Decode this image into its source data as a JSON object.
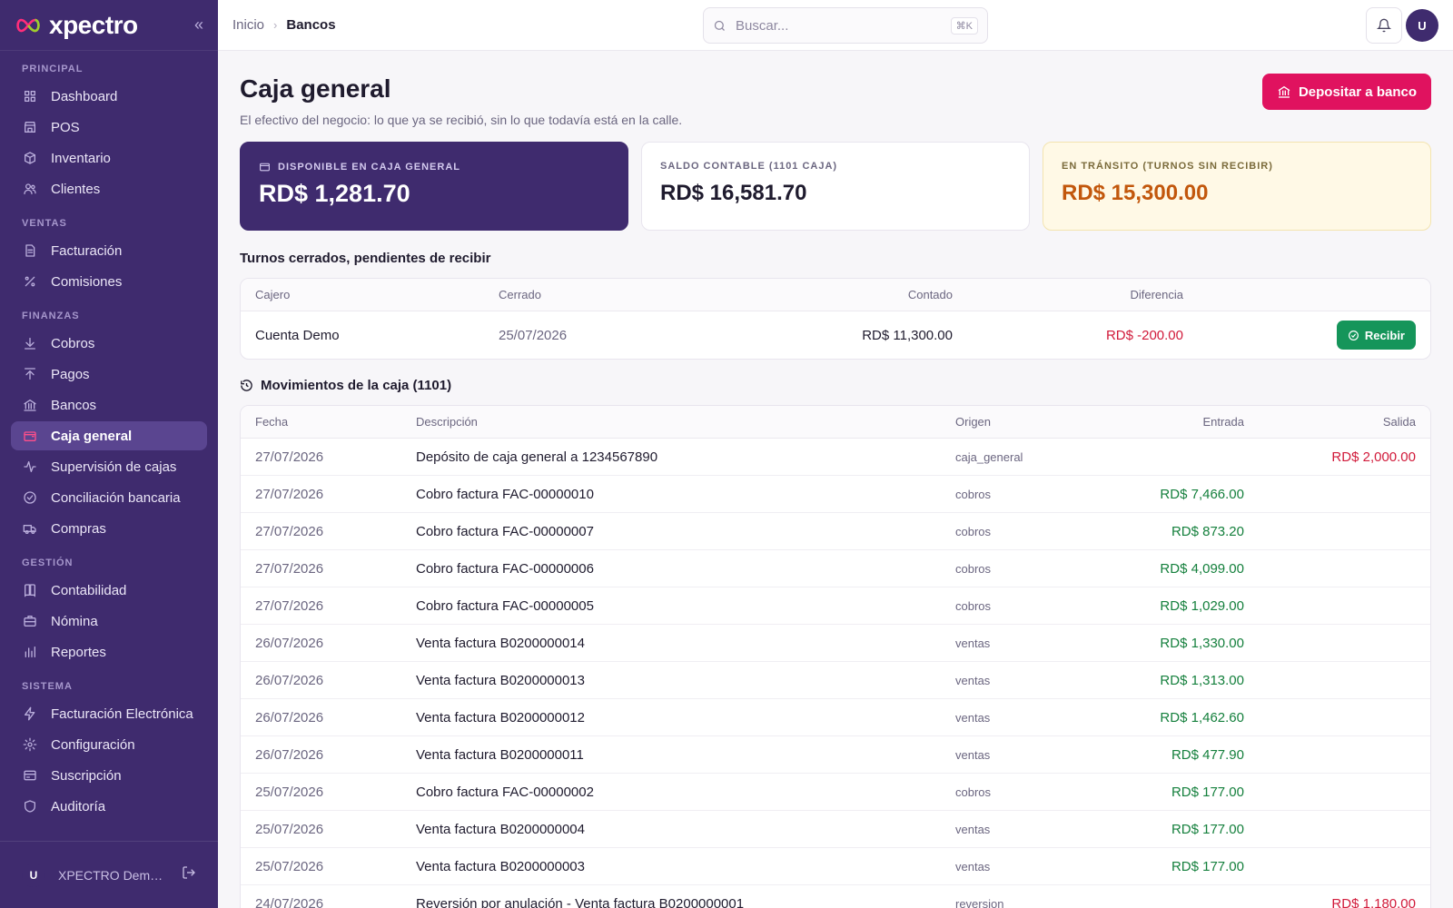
{
  "sidebar": {
    "brand": "xpectro",
    "sections": [
      {
        "title": "PRINCIPAL",
        "items": [
          {
            "name": "dashboard",
            "label": "Dashboard",
            "icon": "grid"
          },
          {
            "name": "pos",
            "label": "POS",
            "icon": "store"
          },
          {
            "name": "inventario",
            "label": "Inventario",
            "icon": "box"
          },
          {
            "name": "clientes",
            "label": "Clientes",
            "icon": "users"
          }
        ]
      },
      {
        "title": "VENTAS",
        "items": [
          {
            "name": "facturacion",
            "label": "Facturación",
            "icon": "file"
          },
          {
            "name": "comisiones",
            "label": "Comisiones",
            "icon": "percent"
          }
        ]
      },
      {
        "title": "FINANZAS",
        "items": [
          {
            "name": "cobros",
            "label": "Cobros",
            "icon": "arrow-down"
          },
          {
            "name": "pagos",
            "label": "Pagos",
            "icon": "arrow-up"
          },
          {
            "name": "bancos",
            "label": "Bancos",
            "icon": "bank"
          },
          {
            "name": "caja-general",
            "label": "Caja general",
            "icon": "wallet",
            "active": true
          },
          {
            "name": "supervision-de-cajas",
            "label": "Supervisión de cajas",
            "icon": "activity"
          },
          {
            "name": "conciliacion-bancaria",
            "label": "Conciliación bancaria",
            "icon": "check-circle"
          },
          {
            "name": "compras",
            "label": "Compras",
            "icon": "truck"
          }
        ]
      },
      {
        "title": "GESTIÓN",
        "items": [
          {
            "name": "contabilidad",
            "label": "Contabilidad",
            "icon": "book"
          },
          {
            "name": "nomina",
            "label": "Nómina",
            "icon": "briefcase"
          },
          {
            "name": "reportes",
            "label": "Reportes",
            "icon": "bar-chart"
          }
        ]
      },
      {
        "title": "SISTEMA",
        "items": [
          {
            "name": "facturacion-electronica",
            "label": "Facturación Electrónica",
            "icon": "zap"
          },
          {
            "name": "configuracion",
            "label": "Configuración",
            "icon": "gear"
          },
          {
            "name": "suscripcion",
            "label": "Suscripción",
            "icon": "card"
          },
          {
            "name": "auditoria",
            "label": "Auditoría",
            "icon": "shield"
          }
        ]
      }
    ],
    "footer": {
      "avatar": "U",
      "org": "XPECTRO Demo S.R.L."
    }
  },
  "topbar": {
    "breadcrumb_home": "Inicio",
    "breadcrumb_current": "Bancos",
    "search_placeholder": "Buscar...",
    "search_shortcut": "⌘K",
    "avatar": "U"
  },
  "page": {
    "title": "Caja general",
    "subtitle": "El efectivo del negocio: lo que ya se recibió, sin lo que todavía está en la calle.",
    "deposit_button": "Depositar a banco"
  },
  "cards": {
    "available_label": "DISPONIBLE EN CAJA GENERAL",
    "available_value": "RD$ 1,281.70",
    "book_label": "SALDO CONTABLE (1101 CAJA)",
    "book_value": "RD$ 16,581.70",
    "transit_label": "EN TRÁNSITO (TURNOS SIN RECIBIR)",
    "transit_value": "RD$ 15,300.00"
  },
  "pending": {
    "heading": "Turnos cerrados, pendientes de recibir",
    "columns": {
      "cajero": "Cajero",
      "cerrado": "Cerrado",
      "contado": "Contado",
      "diferencia": "Diferencia"
    },
    "rows": [
      {
        "cajero": "Cuenta Demo",
        "cerrado": "25/07/2026",
        "contado": "RD$ 11,300.00",
        "diferencia": "RD$ -200.00",
        "action": "Recibir"
      }
    ]
  },
  "movements": {
    "heading": "Movimientos de la caja (1101)",
    "columns": {
      "fecha": "Fecha",
      "descripcion": "Descripción",
      "origen": "Origen",
      "entrada": "Entrada",
      "salida": "Salida"
    },
    "rows": [
      {
        "fecha": "27/07/2026",
        "descripcion": "Depósito de caja general a 1234567890",
        "origen": "caja_general",
        "entrada": "",
        "salida": "RD$ 2,000.00"
      },
      {
        "fecha": "27/07/2026",
        "descripcion": "Cobro factura FAC-00000010",
        "origen": "cobros",
        "entrada": "RD$ 7,466.00",
        "salida": ""
      },
      {
        "fecha": "27/07/2026",
        "descripcion": "Cobro factura FAC-00000007",
        "origen": "cobros",
        "entrada": "RD$ 873.20",
        "salida": ""
      },
      {
        "fecha": "27/07/2026",
        "descripcion": "Cobro factura FAC-00000006",
        "origen": "cobros",
        "entrada": "RD$ 4,099.00",
        "salida": ""
      },
      {
        "fecha": "27/07/2026",
        "descripcion": "Cobro factura FAC-00000005",
        "origen": "cobros",
        "entrada": "RD$ 1,029.00",
        "salida": ""
      },
      {
        "fecha": "26/07/2026",
        "descripcion": "Venta factura B0200000014",
        "origen": "ventas",
        "entrada": "RD$ 1,330.00",
        "salida": ""
      },
      {
        "fecha": "26/07/2026",
        "descripcion": "Venta factura B0200000013",
        "origen": "ventas",
        "entrada": "RD$ 1,313.00",
        "salida": ""
      },
      {
        "fecha": "26/07/2026",
        "descripcion": "Venta factura B0200000012",
        "origen": "ventas",
        "entrada": "RD$ 1,462.60",
        "salida": ""
      },
      {
        "fecha": "26/07/2026",
        "descripcion": "Venta factura B0200000011",
        "origen": "ventas",
        "entrada": "RD$ 477.90",
        "salida": ""
      },
      {
        "fecha": "25/07/2026",
        "descripcion": "Cobro factura FAC-00000002",
        "origen": "cobros",
        "entrada": "RD$ 177.00",
        "salida": ""
      },
      {
        "fecha": "25/07/2026",
        "descripcion": "Venta factura B0200000004",
        "origen": "ventas",
        "entrada": "RD$ 177.00",
        "salida": ""
      },
      {
        "fecha": "25/07/2026",
        "descripcion": "Venta factura B0200000003",
        "origen": "ventas",
        "entrada": "RD$ 177.00",
        "salida": ""
      },
      {
        "fecha": "24/07/2026",
        "descripcion": "Reversión por anulación - Venta factura B0200000001",
        "origen": "reversion",
        "entrada": "",
        "salida": "RD$ 1,180.00"
      }
    ]
  },
  "colors": {
    "sidebar_bg": "#3f2b6e",
    "accent": "#e0125f",
    "positive": "#15803d",
    "negative": "#d11a3a",
    "transit": "#c2570c"
  }
}
